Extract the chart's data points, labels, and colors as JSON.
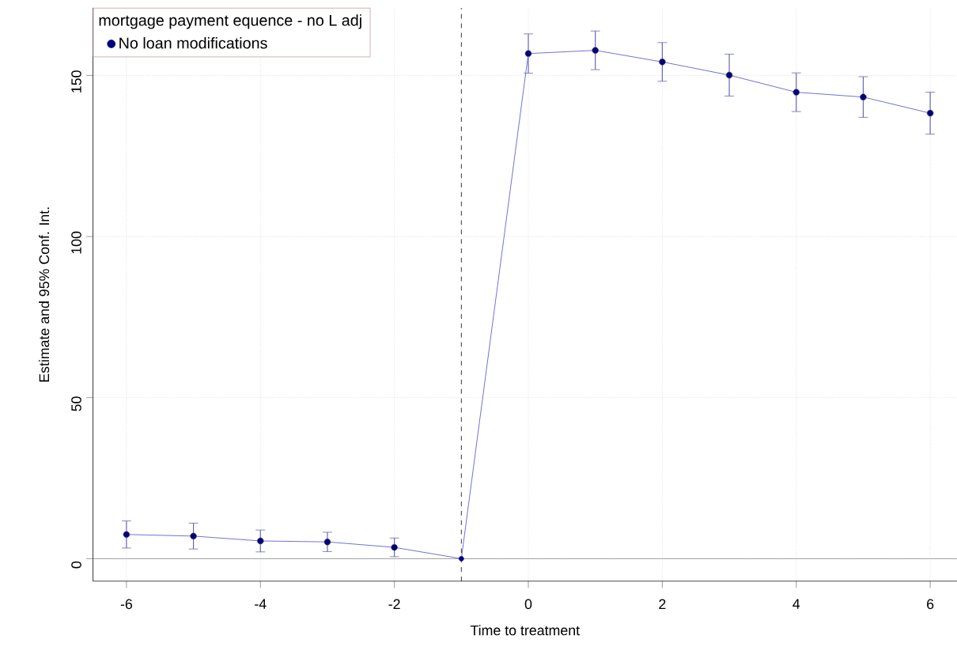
{
  "chart_data": {
    "type": "line",
    "xlabel": "Time to treatment",
    "ylabel": "Estimate and 95% Conf. Int.",
    "legend_title": "mortgage payment equence - no L adj",
    "x": [
      -6,
      -5,
      -4,
      -3,
      -2,
      -1,
      0,
      1,
      2,
      3,
      4,
      5,
      6
    ],
    "series": [
      {
        "name": "No loan modifications",
        "color": "#000080",
        "values": [
          7.5,
          7,
          5.5,
          5.2,
          3.5,
          0,
          156.8,
          157.8,
          154.2,
          150.1,
          144.8,
          143.3,
          138.3
        ],
        "errors": [
          4.2,
          4,
          3.4,
          3,
          2.9,
          null,
          6.1,
          6,
          6,
          6.5,
          6,
          6.3,
          6.5
        ]
      }
    ],
    "xlim": [
      -6.5,
      6.4
    ],
    "ylim": [
      -7,
      171
    ],
    "xticks": [
      -6,
      -4,
      -2,
      0,
      2,
      4,
      6
    ],
    "yticks": [
      0,
      50,
      100,
      150
    ],
    "ref_lines": [
      {
        "axis": "y",
        "value": 0,
        "color": "#808080",
        "line_style": "solid"
      },
      {
        "axis": "x",
        "value": -1,
        "color": "#000000",
        "line_style": "dashed"
      }
    ],
    "grid": true,
    "legend": "top left",
    "marker": "circle",
    "line_style": "solid"
  }
}
